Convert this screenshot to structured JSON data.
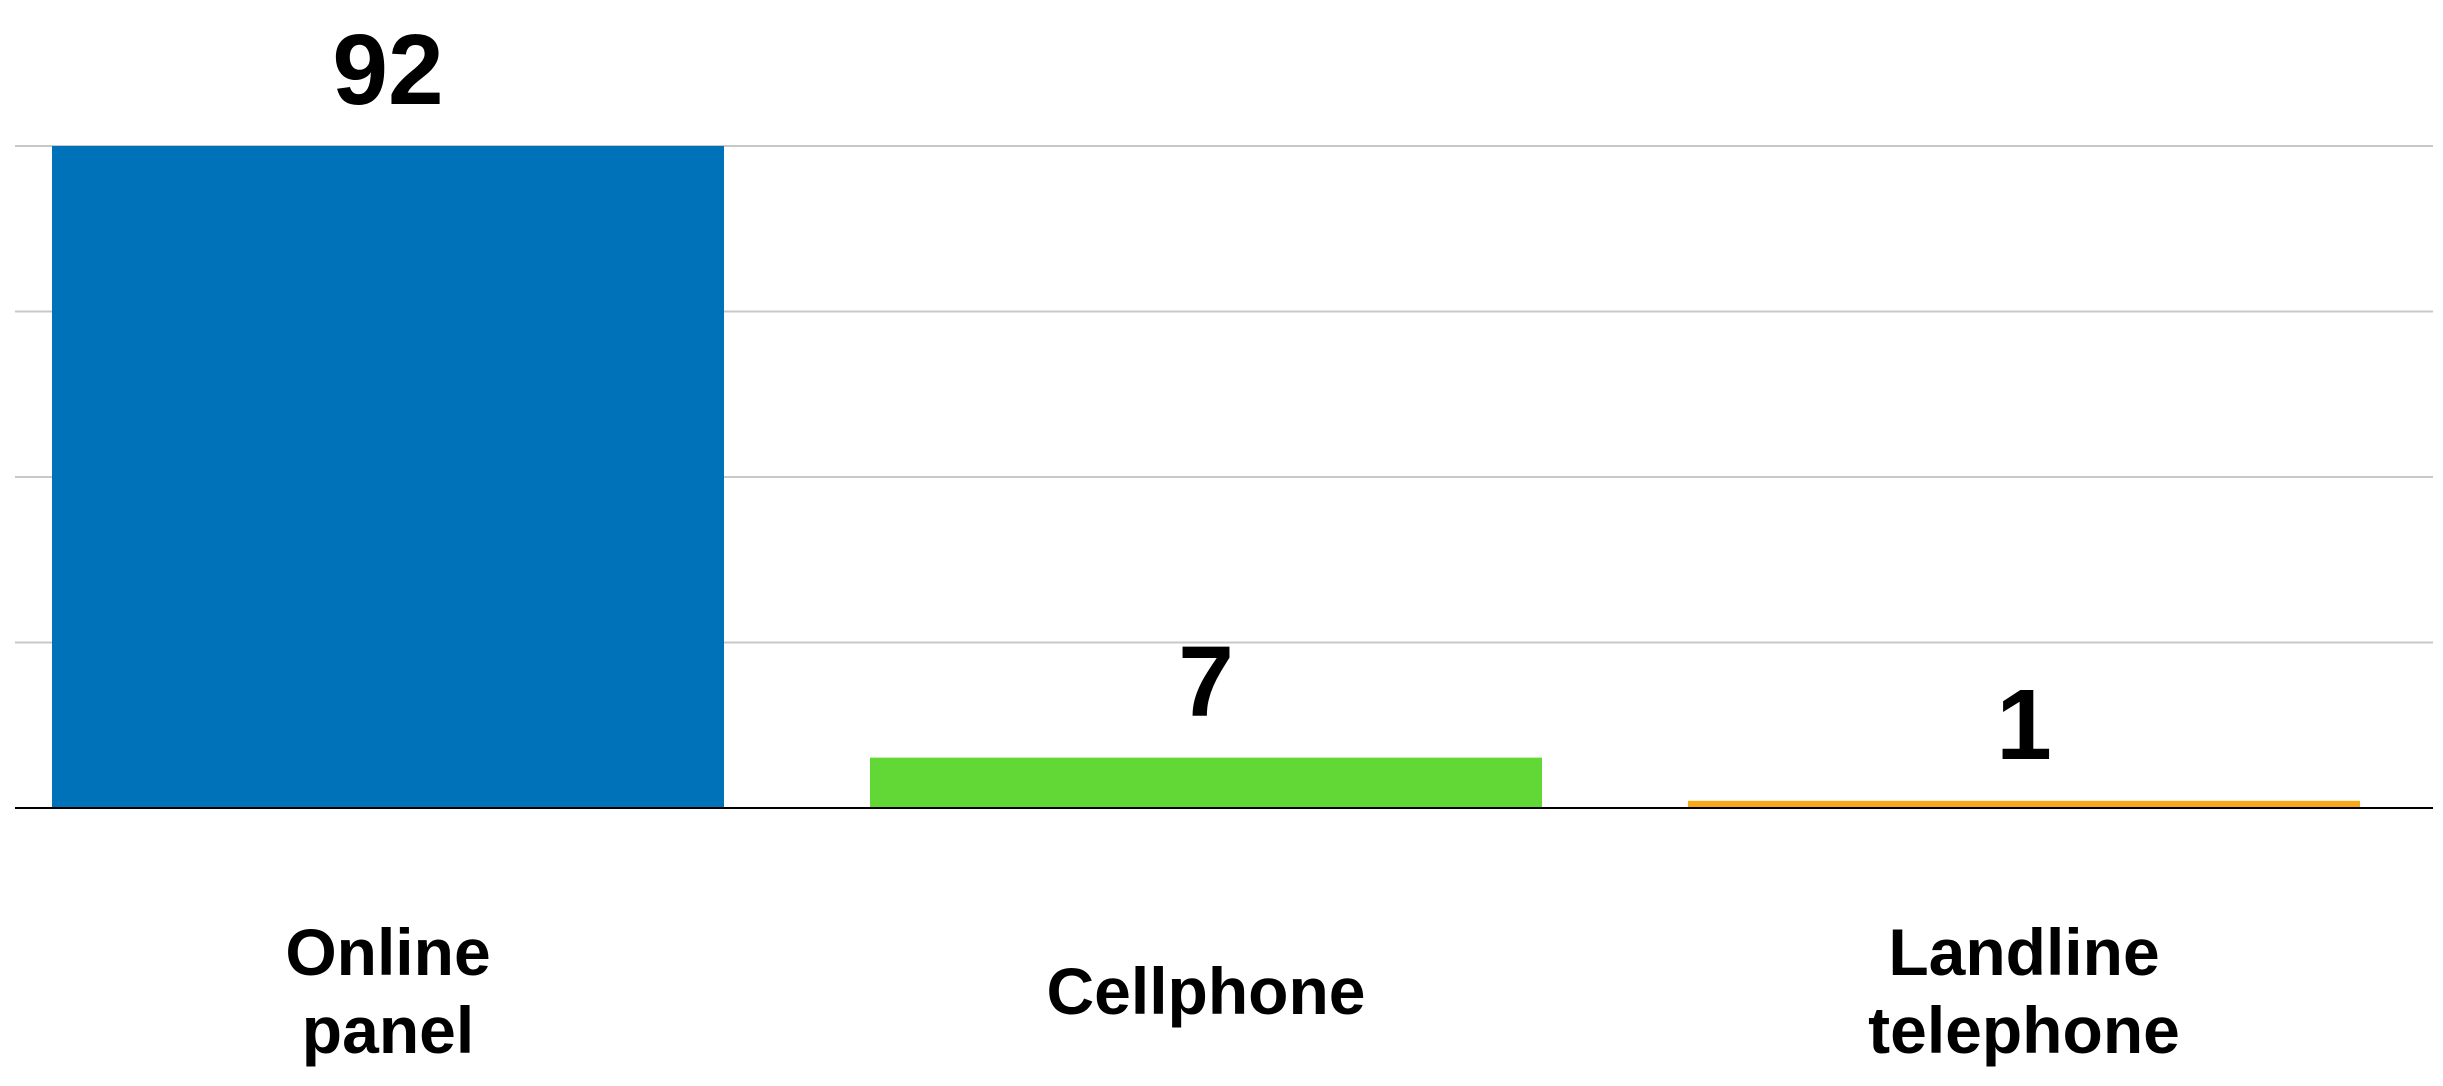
{
  "chart_data": {
    "type": "bar",
    "categories": [
      "Online panel",
      "Cellphone",
      "Landline telephone"
    ],
    "category_lines": [
      [
        "Online",
        "panel"
      ],
      [
        "Cellphone"
      ],
      [
        "Landline",
        "telephone"
      ]
    ],
    "values": [
      92,
      7,
      1
    ],
    "value_labels": [
      "92",
      "7",
      "1"
    ],
    "colors": [
      "#0072B9",
      "#61D836",
      "#F7A81B"
    ],
    "ylim": [
      0,
      92
    ],
    "grid": true,
    "legend": "none",
    "title": "",
    "xlabel": "",
    "ylabel": ""
  }
}
